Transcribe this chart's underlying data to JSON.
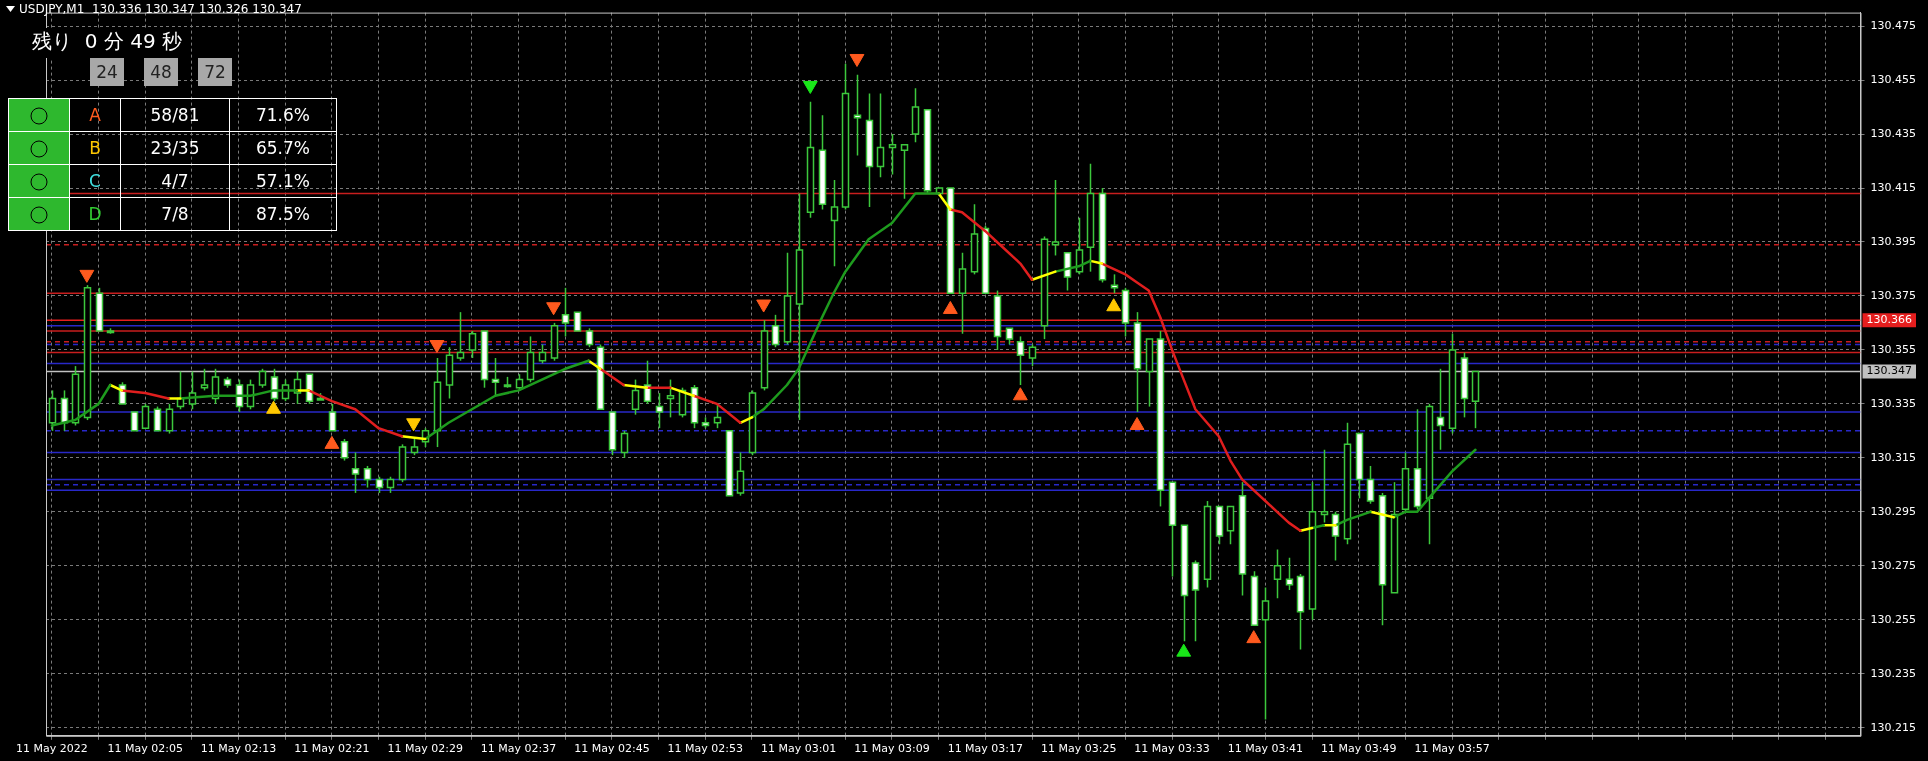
{
  "chart_data": [
    {
      "type": "candlestick",
      "title": "USDJPY,M1  130.336 130.347 130.326 130.347",
      "color": "#3cc83c",
      "colors": [
        "#000000",
        "#ffffff",
        "#000000",
        "#000000",
        "#ffffff",
        "#000000",
        "#ffffff",
        "#ffffff",
        "#000000",
        "#ffffff",
        "#000000",
        "#000000",
        "#000000",
        "#000000",
        "#000000",
        "#ffffff",
        "#ffffff",
        "#000000",
        "#000000",
        "#ffffff",
        "#000000",
        "#000000",
        "#ffffff",
        "#000000",
        "#ffffff",
        "#ffffff",
        "#ffffff",
        "#ffffff",
        "#ffffff",
        "#000000",
        "#000000",
        "#000000",
        "#000000",
        "#000000",
        "#000000",
        "#000000",
        "#000000",
        "#ffffff",
        "#ffffff",
        "#000000",
        "#000000",
        "#000000",
        "#000000",
        "#000000",
        "#ffffff",
        "#ffffff",
        "#ffffff",
        "#ffffff",
        "#ffffff",
        "#000000",
        "#000000",
        "#ffffff",
        "#ffffff",
        "#000000",
        "#000000",
        "#ffffff",
        "#ffffff",
        "#000000",
        "#ffffff",
        "#000000",
        "#000000",
        "#000000",
        "#ffffff",
        "#000000",
        "#000000",
        "#000000",
        "#ffffff",
        "#000000",
        "#000000",
        "#ffffff",
        "#ffffff",
        "#000000",
        "#000000",
        "#000000",
        "#000000",
        "#ffffff",
        "#000000",
        "#ffffff",
        "#000000",
        "#000000",
        "#ffffff",
        "#ffffff",
        "#ffffff",
        "#ffffff",
        "#000000",
        "#000000",
        "#000000",
        "#ffffff",
        "#000000",
        "#000000",
        "#ffffff",
        "#ffffff",
        "#ffffff",
        "#ffffff",
        "#000000",
        "#ffffff",
        "#ffffff",
        "#ffffff",
        "#ffffff",
        "#000000",
        "#ffffff",
        "#000000",
        "#ffffff",
        "#ffffff",
        "#000000",
        "#000000",
        "#ffffff",
        "#ffffff",
        "#000000",
        "#000000",
        "#ffffff",
        "#000000",
        "#ffffff",
        "#ffffff",
        "#ffffff",
        "#000000",
        "#000000",
        "#ffffff",
        "#000000",
        "#ffffff",
        "#000000",
        "#ffffff",
        "#000000"
      ],
      "x": [
        "2022-05-11T01:57",
        "2022-05-11T01:58",
        "2022-05-11T01:59",
        "2022-05-11T02:00",
        "2022-05-11T02:01",
        "2022-05-11T02:02",
        "2022-05-11T02:03",
        "2022-05-11T02:04",
        "2022-05-11T02:05",
        "2022-05-11T02:06",
        "2022-05-11T02:07",
        "2022-05-11T02:08",
        "2022-05-11T02:09",
        "2022-05-11T02:10",
        "2022-05-11T02:11",
        "2022-05-11T02:12",
        "2022-05-11T02:13",
        "2022-05-11T02:14",
        "2022-05-11T02:15",
        "2022-05-11T02:16",
        "2022-05-11T02:17",
        "2022-05-11T02:18",
        "2022-05-11T02:19",
        "2022-05-11T02:20",
        "2022-05-11T02:21",
        "2022-05-11T02:22",
        "2022-05-11T02:23",
        "2022-05-11T02:24",
        "2022-05-11T02:25",
        "2022-05-11T02:26",
        "2022-05-11T02:27",
        "2022-05-11T02:28",
        "2022-05-11T02:29",
        "2022-05-11T02:30",
        "2022-05-11T02:31",
        "2022-05-11T02:32",
        "2022-05-11T02:33",
        "2022-05-11T02:34",
        "2022-05-11T02:35",
        "2022-05-11T02:36",
        "2022-05-11T02:37",
        "2022-05-11T02:38",
        "2022-05-11T02:39",
        "2022-05-11T02:40",
        "2022-05-11T02:41",
        "2022-05-11T02:42",
        "2022-05-11T02:43",
        "2022-05-11T02:44",
        "2022-05-11T02:45",
        "2022-05-11T02:46",
        "2022-05-11T02:47",
        "2022-05-11T02:48",
        "2022-05-11T02:49",
        "2022-05-11T02:50",
        "2022-05-11T02:51",
        "2022-05-11T02:52",
        "2022-05-11T02:53",
        "2022-05-11T02:54",
        "2022-05-11T02:55",
        "2022-05-11T02:56",
        "2022-05-11T02:57",
        "2022-05-11T02:58",
        "2022-05-11T02:59",
        "2022-05-11T03:00",
        "2022-05-11T03:01",
        "2022-05-11T03:02",
        "2022-05-11T03:03",
        "2022-05-11T03:04",
        "2022-05-11T03:05",
        "2022-05-11T03:06",
        "2022-05-11T03:07",
        "2022-05-11T03:08",
        "2022-05-11T03:09",
        "2022-05-11T03:10",
        "2022-05-11T03:11",
        "2022-05-11T03:12",
        "2022-05-11T03:13",
        "2022-05-11T03:14",
        "2022-05-11T03:15",
        "2022-05-11T03:16",
        "2022-05-11T03:17",
        "2022-05-11T03:18",
        "2022-05-11T03:19",
        "2022-05-11T03:20",
        "2022-05-11T03:21",
        "2022-05-11T03:22",
        "2022-05-11T03:23",
        "2022-05-11T03:24",
        "2022-05-11T03:25",
        "2022-05-11T03:26",
        "2022-05-11T03:27",
        "2022-05-11T03:28",
        "2022-05-11T03:29",
        "2022-05-11T03:30",
        "2022-05-11T03:31",
        "2022-05-11T03:32",
        "2022-05-11T03:33",
        "2022-05-11T03:34",
        "2022-05-11T03:35",
        "2022-05-11T03:36",
        "2022-05-11T03:37",
        "2022-05-11T03:38",
        "2022-05-11T03:39",
        "2022-05-11T03:40",
        "2022-05-11T03:41",
        "2022-05-11T03:42",
        "2022-05-11T03:43",
        "2022-05-11T03:44",
        "2022-05-11T03:45",
        "2022-05-11T03:46",
        "2022-05-11T03:47",
        "2022-05-11T03:48",
        "2022-05-11T03:49",
        "2022-05-11T03:50",
        "2022-05-11T03:51",
        "2022-05-11T03:52",
        "2022-05-11T03:53",
        "2022-05-11T03:54",
        "2022-05-11T03:55",
        "2022-05-11T03:56",
        "2022-05-11T03:57",
        "2022-05-11T03:58",
        "2022-05-11T03:59"
      ],
      "ohlc": [
        [
          130.328,
          130.34,
          130.325,
          130.337
        ],
        [
          130.337,
          130.34,
          130.325,
          130.328
        ],
        [
          130.328,
          130.349,
          130.327,
          130.346
        ],
        [
          130.33,
          130.379,
          130.329,
          130.378
        ],
        [
          130.376,
          130.378,
          130.362,
          130.362
        ],
        [
          130.362,
          130.363,
          130.361,
          130.362
        ],
        [
          130.342,
          130.343,
          130.335,
          130.335
        ],
        [
          130.332,
          130.332,
          130.325,
          130.325
        ],
        [
          130.326,
          130.335,
          130.326,
          130.334
        ],
        [
          130.333,
          130.334,
          130.325,
          130.325
        ],
        [
          130.325,
          130.335,
          130.324,
          130.333
        ],
        [
          130.334,
          130.347,
          130.333,
          130.337
        ],
        [
          130.335,
          130.347,
          130.333,
          130.339
        ],
        [
          130.341,
          130.348,
          130.34,
          130.342
        ],
        [
          130.337,
          130.348,
          130.335,
          130.345
        ],
        [
          130.344,
          130.345,
          130.341,
          130.342
        ],
        [
          130.342,
          130.344,
          130.332,
          130.334
        ],
        [
          130.334,
          130.344,
          130.333,
          130.342
        ],
        [
          130.342,
          130.348,
          130.341,
          130.347
        ],
        [
          130.345,
          130.348,
          130.336,
          130.337
        ],
        [
          130.337,
          130.344,
          130.336,
          130.342
        ],
        [
          130.339,
          130.347,
          130.335,
          130.344
        ],
        [
          130.346,
          130.346,
          130.335,
          130.336
        ],
        [
          130.337,
          130.339,
          130.337,
          130.337
        ],
        [
          130.332,
          130.335,
          130.325,
          130.325
        ],
        [
          130.321,
          130.322,
          130.314,
          130.315
        ],
        [
          130.311,
          130.317,
          130.302,
          130.309
        ],
        [
          130.311,
          130.312,
          130.304,
          130.307
        ],
        [
          130.307,
          130.308,
          130.302,
          130.304
        ],
        [
          130.304,
          130.308,
          130.302,
          130.307
        ],
        [
          130.307,
          130.32,
          130.306,
          130.319
        ],
        [
          130.317,
          130.322,
          130.316,
          130.319
        ],
        [
          130.321,
          130.326,
          130.319,
          130.325
        ],
        [
          130.325,
          130.352,
          130.319,
          130.343
        ],
        [
          130.342,
          130.356,
          130.337,
          130.353
        ],
        [
          130.352,
          130.369,
          130.351,
          130.354
        ],
        [
          130.355,
          130.362,
          130.352,
          130.361
        ],
        [
          130.362,
          130.362,
          130.341,
          130.344
        ],
        [
          130.344,
          130.352,
          130.338,
          130.343
        ],
        [
          130.342,
          130.345,
          130.341,
          130.342
        ],
        [
          130.341,
          130.346,
          130.34,
          130.344
        ],
        [
          130.344,
          130.36,
          130.343,
          130.354
        ],
        [
          130.351,
          130.357,
          130.35,
          130.354
        ],
        [
          130.352,
          130.365,
          130.351,
          130.364
        ],
        [
          130.368,
          130.378,
          130.36,
          130.365
        ],
        [
          130.369,
          130.369,
          130.362,
          130.362
        ],
        [
          130.362,
          130.363,
          130.356,
          130.357
        ],
        [
          130.356,
          130.357,
          130.333,
          130.333
        ],
        [
          130.332,
          130.332,
          130.316,
          130.318
        ],
        [
          130.317,
          130.325,
          130.315,
          130.324
        ],
        [
          130.333,
          130.344,
          130.331,
          130.34
        ],
        [
          130.342,
          130.351,
          130.335,
          130.336
        ],
        [
          130.334,
          130.339,
          130.326,
          130.332
        ],
        [
          130.337,
          130.344,
          130.33,
          130.338
        ],
        [
          130.331,
          130.341,
          130.33,
          130.34
        ],
        [
          130.341,
          130.342,
          130.326,
          130.328
        ],
        [
          130.328,
          130.33,
          130.326,
          130.327
        ],
        [
          130.328,
          130.335,
          130.326,
          130.33
        ],
        [
          130.325,
          130.325,
          130.301,
          130.301
        ],
        [
          130.302,
          130.317,
          130.301,
          130.31
        ],
        [
          130.317,
          130.34,
          130.316,
          130.339
        ],
        [
          130.341,
          130.366,
          130.34,
          130.362
        ],
        [
          130.364,
          130.368,
          130.356,
          130.357
        ],
        [
          130.358,
          130.391,
          130.357,
          130.375
        ],
        [
          130.372,
          130.413,
          130.329,
          130.392
        ],
        [
          130.406,
          130.447,
          130.404,
          130.43
        ],
        [
          130.429,
          130.442,
          130.407,
          130.409
        ],
        [
          130.403,
          130.418,
          130.386,
          130.408
        ],
        [
          130.408,
          130.461,
          130.407,
          130.45
        ],
        [
          130.442,
          130.457,
          130.427,
          130.441
        ],
        [
          130.44,
          130.45,
          130.408,
          130.423
        ],
        [
          130.423,
          130.45,
          130.419,
          130.43
        ],
        [
          130.43,
          130.435,
          130.42,
          130.431
        ],
        [
          130.429,
          130.431,
          130.411,
          130.431
        ],
        [
          130.435,
          130.452,
          130.432,
          130.445
        ],
        [
          130.444,
          130.444,
          130.413,
          130.414
        ],
        [
          130.413,
          130.415,
          130.413,
          130.415
        ],
        [
          130.415,
          130.415,
          130.376,
          130.376
        ],
        [
          130.376,
          130.391,
          130.361,
          130.385
        ],
        [
          130.384,
          130.409,
          130.383,
          130.398
        ],
        [
          130.4,
          130.401,
          130.376,
          130.376
        ],
        [
          130.375,
          130.377,
          130.355,
          130.36
        ],
        [
          130.363,
          130.363,
          130.357,
          130.359
        ],
        [
          130.358,
          130.36,
          130.342,
          130.353
        ],
        [
          130.352,
          130.357,
          130.349,
          130.356
        ],
        [
          130.364,
          130.397,
          130.359,
          130.396
        ],
        [
          130.394,
          130.418,
          130.39,
          130.395
        ],
        [
          130.391,
          130.391,
          130.377,
          130.382
        ],
        [
          130.384,
          130.404,
          130.383,
          130.392
        ],
        [
          130.393,
          130.424,
          130.384,
          130.413
        ],
        [
          130.413,
          130.415,
          130.38,
          130.381
        ],
        [
          130.379,
          130.383,
          130.376,
          130.378
        ],
        [
          130.377,
          130.378,
          130.36,
          130.365
        ],
        [
          130.365,
          130.369,
          130.332,
          130.348
        ],
        [
          130.347,
          130.359,
          130.334,
          130.359
        ],
        [
          130.359,
          130.362,
          130.297,
          130.303
        ],
        [
          130.306,
          130.306,
          130.271,
          130.29
        ],
        [
          130.29,
          130.29,
          130.247,
          130.264
        ],
        [
          130.276,
          130.277,
          130.247,
          130.266
        ],
        [
          130.27,
          130.299,
          130.267,
          130.297
        ],
        [
          130.297,
          130.297,
          130.283,
          130.286
        ],
        [
          130.288,
          130.297,
          130.283,
          130.297
        ],
        [
          130.301,
          130.306,
          130.264,
          130.272
        ],
        [
          130.271,
          130.273,
          130.253,
          130.253
        ],
        [
          130.255,
          130.267,
          130.218,
          130.262
        ],
        [
          130.27,
          130.281,
          130.263,
          130.275
        ],
        [
          130.27,
          130.278,
          130.266,
          130.268
        ],
        [
          130.271,
          130.272,
          130.244,
          130.258
        ],
        [
          130.259,
          130.306,
          130.255,
          130.295
        ],
        [
          130.294,
          130.318,
          130.291,
          130.295
        ],
        [
          130.294,
          130.295,
          130.277,
          130.286
        ],
        [
          130.285,
          130.328,
          130.283,
          130.32
        ],
        [
          130.324,
          130.324,
          130.3,
          130.307
        ],
        [
          130.307,
          130.312,
          130.298,
          130.299
        ],
        [
          130.301,
          130.302,
          130.253,
          130.268
        ],
        [
          130.265,
          130.306,
          130.265,
          130.294
        ],
        [
          130.296,
          130.317,
          130.295,
          130.311
        ],
        [
          130.311,
          130.333,
          130.296,
          130.297
        ],
        [
          130.3,
          130.335,
          130.283,
          130.334
        ],
        [
          130.33,
          130.348,
          130.318,
          130.327
        ],
        [
          130.326,
          130.361,
          130.324,
          130.355
        ],
        [
          130.352,
          130.354,
          130.33,
          130.337
        ],
        [
          130.336,
          130.347,
          130.326,
          130.347
        ]
      ],
      "series": [
        {
          "type": "line",
          "marker": "none",
          "color": "#1e9b1e",
          "x": [
            "2022-05-11T01:57",
            "2022-05-11T01:59",
            "2022-05-11T02:01",
            "2022-05-11T02:02"
          ],
          "values": [
            130.327,
            130.329,
            130.335,
            130.342
          ]
        },
        {
          "type": "line",
          "marker": "none",
          "color": "#ffff00",
          "x": [
            "2022-05-11T02:02",
            "2022-05-11T02:03"
          ],
          "values": [
            130.342,
            130.34
          ]
        },
        {
          "type": "line",
          "marker": "none",
          "color": "#e01e1e",
          "x": [
            "2022-05-11T02:03",
            "2022-05-11T02:05",
            "2022-05-11T02:07"
          ],
          "values": [
            130.34,
            130.339,
            130.337
          ]
        },
        {
          "type": "line",
          "marker": "none",
          "color": "#ffff00",
          "x": [
            "2022-05-11T02:07",
            "2022-05-11T02:08"
          ],
          "values": [
            130.337,
            130.337
          ]
        },
        {
          "type": "line",
          "marker": "none",
          "color": "#1e9b1e",
          "x": [
            "2022-05-11T02:08",
            "2022-05-11T02:11",
            "2022-05-11T02:14",
            "2022-05-11T02:16",
            "2022-05-11T02:18"
          ],
          "values": [
            130.337,
            130.338,
            130.338,
            130.34,
            130.34
          ]
        },
        {
          "type": "line",
          "marker": "none",
          "color": "#ffff00",
          "x": [
            "2022-05-11T02:18",
            "2022-05-11T02:19"
          ],
          "values": [
            130.34,
            130.34
          ]
        },
        {
          "type": "line",
          "marker": "none",
          "color": "#e01e1e",
          "x": [
            "2022-05-11T02:19",
            "2022-05-11T02:21",
            "2022-05-11T02:23",
            "2022-05-11T02:25",
            "2022-05-11T02:27"
          ],
          "values": [
            130.34,
            130.336,
            130.333,
            130.326,
            130.323
          ]
        },
        {
          "type": "line",
          "marker": "none",
          "color": "#ffff00",
          "x": [
            "2022-05-11T02:27",
            "2022-05-11T02:29"
          ],
          "values": [
            130.323,
            130.322
          ]
        },
        {
          "type": "line",
          "marker": "none",
          "color": "#1e9b1e",
          "x": [
            "2022-05-11T02:29",
            "2022-05-11T02:31",
            "2022-05-11T02:33",
            "2022-05-11T02:35",
            "2022-05-11T02:37",
            "2022-05-11T02:39",
            "2022-05-11T02:41",
            "2022-05-11T02:43"
          ],
          "values": [
            130.322,
            130.328,
            130.333,
            130.338,
            130.34,
            130.344,
            130.348,
            130.351
          ]
        },
        {
          "type": "line",
          "marker": "none",
          "color": "#ffff00",
          "x": [
            "2022-05-11T02:43",
            "2022-05-11T02:44"
          ],
          "values": [
            130.351,
            130.348
          ]
        },
        {
          "type": "line",
          "marker": "none",
          "color": "#e01e1e",
          "x": [
            "2022-05-11T02:44",
            "2022-05-11T02:46"
          ],
          "values": [
            130.348,
            130.342
          ]
        },
        {
          "type": "line",
          "marker": "none",
          "color": "#ffff00",
          "x": [
            "2022-05-11T02:46",
            "2022-05-11T02:48"
          ],
          "values": [
            130.342,
            130.341
          ]
        },
        {
          "type": "line",
          "marker": "none",
          "color": "#e01e1e",
          "x": [
            "2022-05-11T02:48",
            "2022-05-11T02:50"
          ],
          "values": [
            130.341,
            130.341
          ]
        },
        {
          "type": "line",
          "marker": "none",
          "color": "#ffff00",
          "x": [
            "2022-05-11T02:50",
            "2022-05-11T02:52"
          ],
          "values": [
            130.341,
            130.338
          ]
        },
        {
          "type": "line",
          "marker": "none",
          "color": "#e01e1e",
          "x": [
            "2022-05-11T02:52",
            "2022-05-11T02:54",
            "2022-05-11T02:56"
          ],
          "values": [
            130.338,
            130.335,
            130.328
          ]
        },
        {
          "type": "line",
          "marker": "none",
          "color": "#ffff00",
          "x": [
            "2022-05-11T02:56",
            "2022-05-11T02:57"
          ],
          "values": [
            130.328,
            130.33
          ]
        },
        {
          "type": "line",
          "marker": "none",
          "color": "#1e9b1e",
          "x": [
            "2022-05-11T02:57",
            "2022-05-11T02:58",
            "2022-05-11T03:00",
            "2022-05-11T03:01",
            "2022-05-11T03:03",
            "2022-05-11T03:04",
            "2022-05-11T03:05",
            "2022-05-11T03:07",
            "2022-05-11T03:09",
            "2022-05-11T03:11",
            "2022-05-11T03:13"
          ],
          "values": [
            130.33,
            130.333,
            130.342,
            130.348,
            130.367,
            130.376,
            130.384,
            130.396,
            130.402,
            130.413,
            130.413
          ]
        },
        {
          "type": "line",
          "marker": "none",
          "color": "#ffff00",
          "x": [
            "2022-05-11T03:13",
            "2022-05-11T03:14"
          ],
          "values": [
            130.413,
            130.407
          ]
        },
        {
          "type": "line",
          "marker": "none",
          "color": "#e01e1e",
          "x": [
            "2022-05-11T03:14",
            "2022-05-11T03:15",
            "2022-05-11T03:17",
            "2022-05-11T03:18",
            "2022-05-11T03:20",
            "2022-05-11T03:21"
          ],
          "values": [
            130.407,
            130.406,
            130.399,
            130.395,
            130.387,
            130.381
          ]
        },
        {
          "type": "line",
          "marker": "none",
          "color": "#ffff00",
          "x": [
            "2022-05-11T03:21",
            "2022-05-11T03:23"
          ],
          "values": [
            130.381,
            130.384
          ]
        },
        {
          "type": "line",
          "marker": "none",
          "color": "#1e9b1e",
          "x": [
            "2022-05-11T03:23",
            "2022-05-11T03:25",
            "2022-05-11T03:26"
          ],
          "values": [
            130.384,
            130.386,
            130.388
          ]
        },
        {
          "type": "line",
          "marker": "none",
          "color": "#ffff00",
          "x": [
            "2022-05-11T03:26",
            "2022-05-11T03:27"
          ],
          "values": [
            130.388,
            130.387
          ]
        },
        {
          "type": "line",
          "marker": "none",
          "color": "#e01e1e",
          "x": [
            "2022-05-11T03:27",
            "2022-05-11T03:29",
            "2022-05-11T03:30",
            "2022-05-11T03:31",
            "2022-05-11T03:32",
            "2022-05-11T03:33",
            "2022-05-11T03:34",
            "2022-05-11T03:35",
            "2022-05-11T03:37",
            "2022-05-11T03:38",
            "2022-05-11T03:39",
            "2022-05-11T03:41",
            "2022-05-11T03:43",
            "2022-05-11T03:44"
          ],
          "values": [
            130.387,
            130.383,
            130.38,
            130.377,
            130.367,
            130.355,
            130.344,
            130.333,
            130.323,
            130.314,
            130.307,
            130.299,
            130.291,
            130.288
          ]
        },
        {
          "type": "line",
          "marker": "none",
          "color": "#ffff00",
          "x": [
            "2022-05-11T03:44",
            "2022-05-11T03:45"
          ],
          "values": [
            130.288,
            130.289
          ]
        },
        {
          "type": "line",
          "marker": "none",
          "color": "#1e9b1e",
          "x": [
            "2022-05-11T03:45",
            "2022-05-11T03:46"
          ],
          "values": [
            130.289,
            130.29
          ]
        },
        {
          "type": "line",
          "marker": "none",
          "color": "#ffff00",
          "x": [
            "2022-05-11T03:46",
            "2022-05-11T03:47"
          ],
          "values": [
            130.29,
            130.29
          ]
        },
        {
          "type": "line",
          "marker": "none",
          "color": "#1e9b1e",
          "x": [
            "2022-05-11T03:47",
            "2022-05-11T03:48",
            "2022-05-11T03:50"
          ],
          "values": [
            130.29,
            130.292,
            130.295
          ]
        },
        {
          "type": "line",
          "marker": "none",
          "color": "#ffff00",
          "x": [
            "2022-05-11T03:50",
            "2022-05-11T03:52"
          ],
          "values": [
            130.295,
            130.293
          ]
        },
        {
          "type": "line",
          "marker": "none",
          "color": "#1e9b1e",
          "x": [
            "2022-05-11T03:52",
            "2022-05-11T03:53",
            "2022-05-11T03:54",
            "2022-05-11T03:55",
            "2022-05-11T03:56",
            "2022-05-11T03:57",
            "2022-05-11T03:59"
          ],
          "values": [
            130.293,
            130.295,
            130.295,
            130.3,
            130.305,
            130.31,
            130.318
          ]
        },
        {
          "type": "scatter",
          "marker": "triangle",
          "color": "#ff5a1e",
          "x": [
            "2022-05-11T02:00",
            "2022-05-11T02:21",
            "2022-05-11T02:30",
            "2022-05-11T02:40",
            "2022-05-11T02:58",
            "2022-05-11T03:06",
            "2022-05-11T03:14",
            "2022-05-11T03:20",
            "2022-05-11T03:30",
            "2022-05-11T03:40"
          ],
          "values": [
            130.383,
            130.32,
            130.357,
            130.371,
            130.372,
            130.463,
            130.37,
            130.338,
            130.327,
            130.248
          ]
        },
        {
          "type": "scatter",
          "marker": "triangle",
          "color": "#ffc800",
          "x": [
            "2022-05-11T02:16",
            "2022-05-11T02:28",
            "2022-05-11T03:28"
          ],
          "values": [
            130.333,
            130.328,
            130.371
          ]
        },
        {
          "type": "scatter",
          "marker": "triangle",
          "color": "#19e619",
          "x": [
            "2022-05-11T03:02",
            "2022-05-11T03:34"
          ],
          "values": [
            130.453,
            130.243
          ]
        }
      ],
      "ref_lines": [
        {
          "axis": "y",
          "value": 130.413,
          "color": "#c81e1e",
          "line_style": "solid"
        },
        {
          "axis": "y",
          "value": 130.394,
          "color": "#c81e1e",
          "line_style": "dashed"
        },
        {
          "axis": "y",
          "value": 130.376,
          "color": "#c81e1e",
          "line_style": "solid"
        },
        {
          "axis": "y",
          "value": 130.366,
          "color": "#e61e1e",
          "line_style": "solid",
          "label": "130.366"
        },
        {
          "axis": "y",
          "value": 130.364,
          "color": "#2828c8",
          "line_style": "solid"
        },
        {
          "axis": "y",
          "value": 130.362,
          "color": "#c81e1e",
          "line_style": "solid"
        },
        {
          "axis": "y",
          "value": 130.358,
          "color": "#c81e1e",
          "line_style": "dashed"
        },
        {
          "axis": "y",
          "value": 130.357,
          "color": "#2828c8",
          "line_style": "dashed"
        },
        {
          "axis": "y",
          "value": 130.354,
          "color": "#c81e1e",
          "line_style": "solid"
        },
        {
          "axis": "y",
          "value": 130.35,
          "color": "#2828c8",
          "line_style": "solid"
        },
        {
          "axis": "y",
          "value": 130.347,
          "color": "#c0c0c0",
          "line_style": "solid",
          "label": "130.347"
        },
        {
          "axis": "y",
          "value": 130.332,
          "color": "#2828c8",
          "line_style": "solid"
        },
        {
          "axis": "y",
          "value": 130.325,
          "color": "#2828c8",
          "line_style": "dashed"
        },
        {
          "axis": "y",
          "value": 130.317,
          "color": "#2828c8",
          "line_style": "solid"
        },
        {
          "axis": "y",
          "value": 130.307,
          "color": "#2828c8",
          "line_style": "solid"
        },
        {
          "axis": "y",
          "value": 130.305,
          "color": "#2828c8",
          "line_style": "dashed"
        },
        {
          "axis": "y",
          "value": 130.303,
          "color": "#2828c8",
          "line_style": "solid"
        }
      ],
      "xlim": [
        "2022-05-11T01:56:30",
        "2022-05-11T04:32"
      ],
      "xticks": [
        {
          "value": "2022-05-11T01:57",
          "label": "11 May 2022"
        },
        {
          "value": "2022-05-11T02:01",
          "label": null
        },
        {
          "value": "2022-05-11T02:05",
          "label": "11 May 02:05"
        },
        {
          "value": "2022-05-11T02:09",
          "label": null
        },
        {
          "value": "2022-05-11T02:13",
          "label": "11 May 02:13"
        },
        {
          "value": "2022-05-11T02:17",
          "label": null
        },
        {
          "value": "2022-05-11T02:21",
          "label": "11 May 02:21"
        },
        {
          "value": "2022-05-11T02:25",
          "label": null
        },
        {
          "value": "2022-05-11T02:29",
          "label": "11 May 02:29"
        },
        {
          "value": "2022-05-11T02:33",
          "label": null
        },
        {
          "value": "2022-05-11T02:37",
          "label": "11 May 02:37"
        },
        {
          "value": "2022-05-11T02:41",
          "label": null
        },
        {
          "value": "2022-05-11T02:45",
          "label": "11 May 02:45"
        },
        {
          "value": "2022-05-11T02:49",
          "label": null
        },
        {
          "value": "2022-05-11T02:53",
          "label": "11 May 02:53"
        },
        {
          "value": "2022-05-11T02:57",
          "label": null
        },
        {
          "value": "2022-05-11T03:01",
          "label": "11 May 03:01"
        },
        {
          "value": "2022-05-11T03:05",
          "label": null
        },
        {
          "value": "2022-05-11T03:09",
          "label": "11 May 03:09"
        },
        {
          "value": "2022-05-11T03:13",
          "label": null
        },
        {
          "value": "2022-05-11T03:17",
          "label": "11 May 03:17"
        },
        {
          "value": "2022-05-11T03:21",
          "label": null
        },
        {
          "value": "2022-05-11T03:25",
          "label": "11 May 03:25"
        },
        {
          "value": "2022-05-11T03:29",
          "label": null
        },
        {
          "value": "2022-05-11T03:33",
          "label": "11 May 03:33"
        },
        {
          "value": "2022-05-11T03:37",
          "label": null
        },
        {
          "value": "2022-05-11T03:41",
          "label": "11 May 03:41"
        },
        {
          "value": "2022-05-11T03:45",
          "label": null
        },
        {
          "value": "2022-05-11T03:49",
          "label": "11 May 03:49"
        },
        {
          "value": "2022-05-11T03:53",
          "label": null
        },
        {
          "value": "2022-05-11T03:57",
          "label": "11 May 03:57"
        },
        {
          "value": "2022-05-11T04:01",
          "label": null
        },
        {
          "value": "2022-05-11T04:05",
          "label": null
        },
        {
          "value": "2022-05-11T04:09",
          "label": null
        },
        {
          "value": "2022-05-11T04:13",
          "label": null
        },
        {
          "value": "2022-05-11T04:17",
          "label": null
        },
        {
          "value": "2022-05-11T04:21",
          "label": null
        },
        {
          "value": "2022-05-11T04:25",
          "label": null
        },
        {
          "value": "2022-05-11T04:29",
          "label": null
        }
      ],
      "ylim": [
        130.212,
        130.48
      ],
      "yticks": [
        130.215,
        130.235,
        130.255,
        130.275,
        130.295,
        130.315,
        130.335,
        130.355,
        130.375,
        130.395,
        130.415,
        130.435,
        130.455,
        130.475
      ],
      "grid": true
    },
    {
      "type": "other",
      "title": "残り  0 分 49 秒",
      "annotations": [
        "24",
        "48",
        "72"
      ],
      "categories": [
        "A",
        "B",
        "C",
        "D"
      ],
      "colors": [
        "#ff5a1e",
        "#ffc800",
        "#40e0e0",
        "#32cd32"
      ],
      "cell_labels": [
        [
          "58/81",
          "71.6%"
        ],
        [
          "23/35",
          "65.7%"
        ],
        [
          "4/7",
          "57.1%"
        ],
        [
          "7/8",
          "87.5%"
        ]
      ]
    }
  ]
}
